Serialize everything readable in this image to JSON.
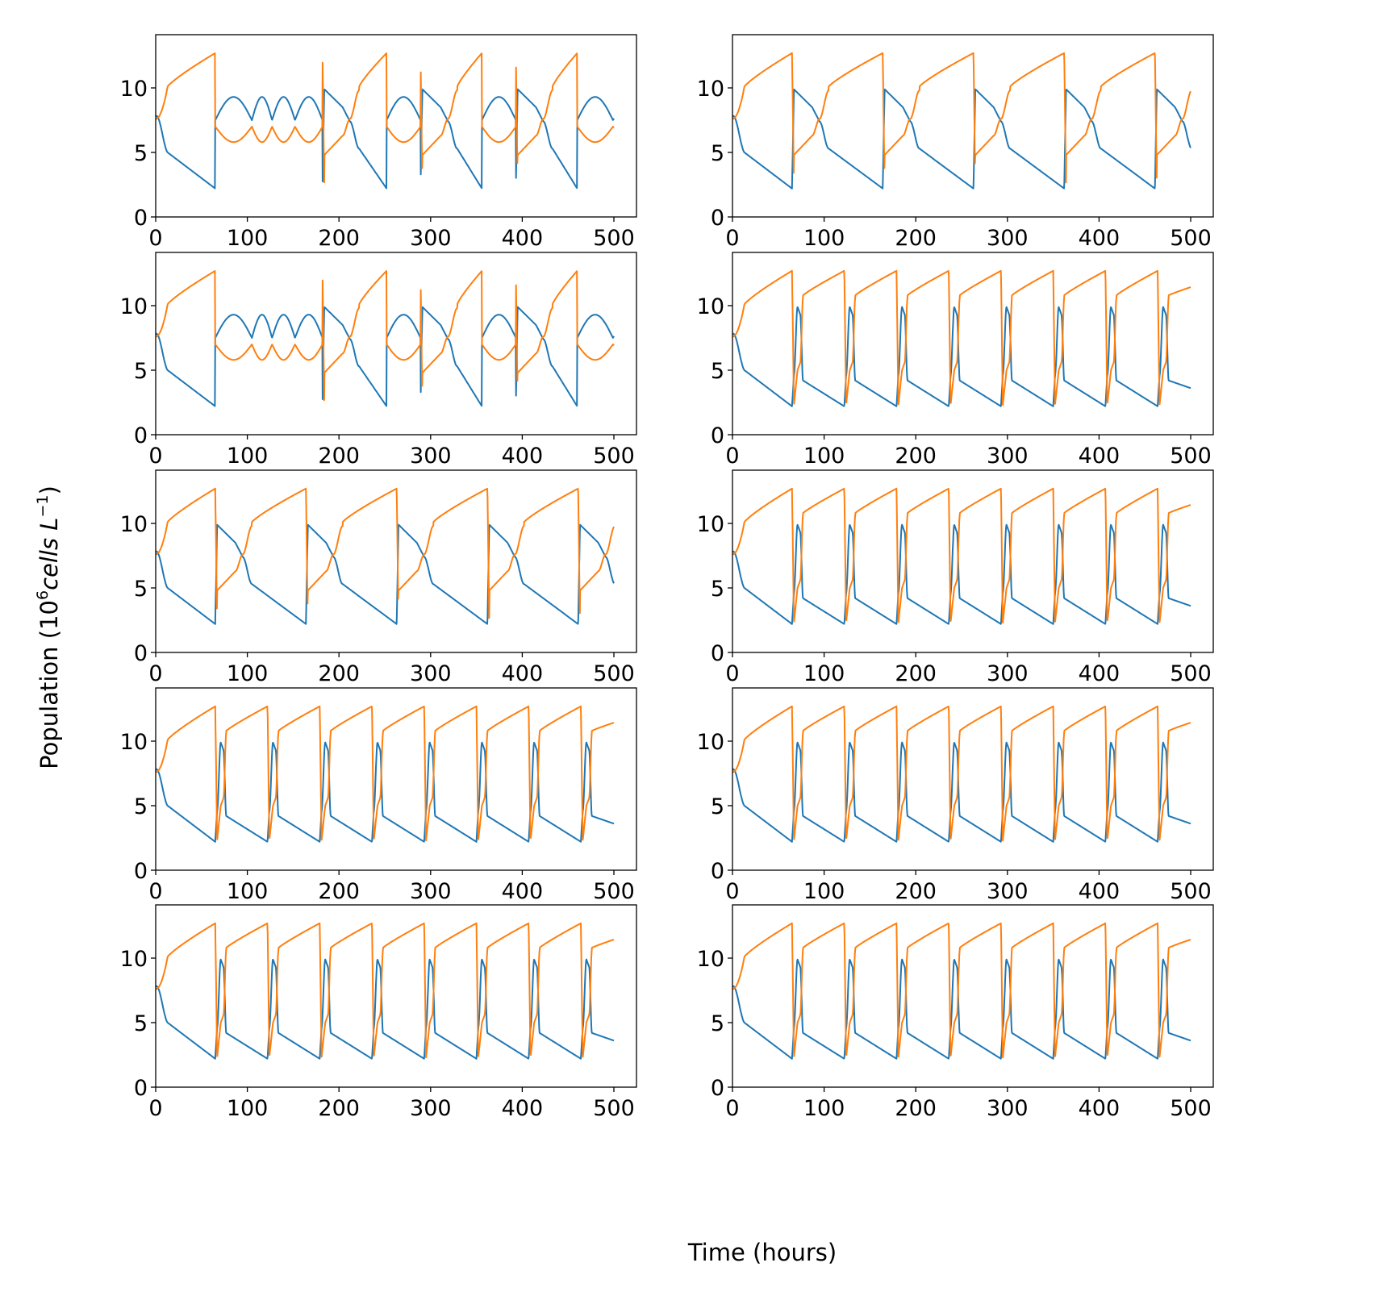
{
  "figure": {
    "xlabel": "Time (hours)",
    "ylabel": "Population (10^6 cells L^-1)",
    "ylabel_parts": {
      "prefix": "Population (10",
      "exp1": "6",
      "italic": "cells L",
      "exp2": "−1",
      "suffix": ")"
    }
  },
  "colors": {
    "series_a": "#1f77b4",
    "series_b": "#ff7f0e"
  },
  "chart_data": [
    {
      "type": "line",
      "panel": "row1-left",
      "pattern": "irregular",
      "xlim": [
        0,
        500
      ],
      "ylim": [
        0,
        13.5
      ],
      "xticks": [
        "0",
        "100",
        "200",
        "300",
        "400",
        "500"
      ],
      "yticks": [
        "0",
        "5",
        "10"
      ],
      "series": [
        {
          "name": "series_a",
          "color": "#1f77b4"
        },
        {
          "name": "series_b",
          "color": "#ff7f0e"
        }
      ],
      "event_times": [
        65,
        105,
        127,
        152,
        182,
        252,
        289,
        356,
        393,
        460,
        499
      ]
    },
    {
      "type": "line",
      "panel": "row1-right",
      "pattern": "long",
      "period": 99,
      "xlim": [
        0,
        500
      ],
      "ylim": [
        0,
        13.5
      ],
      "xticks": [
        "0",
        "100",
        "200",
        "300",
        "400",
        "500"
      ],
      "yticks": [
        "0",
        "5",
        "10"
      ],
      "series": [
        {
          "name": "series_a",
          "color": "#1f77b4"
        },
        {
          "name": "series_b",
          "color": "#ff7f0e"
        }
      ]
    },
    {
      "type": "line",
      "panel": "row2-left",
      "pattern": "irregular",
      "xlim": [
        0,
        500
      ],
      "ylim": [
        0,
        13.5
      ],
      "xticks": [
        "0",
        "100",
        "200",
        "300",
        "400",
        "500"
      ],
      "yticks": [
        "0",
        "5",
        "10"
      ],
      "series": [
        {
          "name": "series_a",
          "color": "#1f77b4"
        },
        {
          "name": "series_b",
          "color": "#ff7f0e"
        }
      ],
      "event_times": [
        65,
        105,
        127,
        152,
        182,
        252,
        289,
        356,
        393,
        460,
        499
      ]
    },
    {
      "type": "line",
      "panel": "row2-right",
      "pattern": "short",
      "period": 57,
      "xlim": [
        0,
        500
      ],
      "ylim": [
        0,
        13.5
      ],
      "xticks": [
        "0",
        "100",
        "200",
        "300",
        "400",
        "500"
      ],
      "yticks": [
        "0",
        "5",
        "10"
      ],
      "series": [
        {
          "name": "series_a",
          "color": "#1f77b4"
        },
        {
          "name": "series_b",
          "color": "#ff7f0e"
        }
      ]
    },
    {
      "type": "line",
      "panel": "row3-left",
      "pattern": "long",
      "period": 99,
      "xlim": [
        0,
        500
      ],
      "ylim": [
        0,
        13.5
      ],
      "xticks": [
        "0",
        "100",
        "200",
        "300",
        "400",
        "500"
      ],
      "yticks": [
        "0",
        "5",
        "10"
      ],
      "series": [
        {
          "name": "series_a",
          "color": "#1f77b4"
        },
        {
          "name": "series_b",
          "color": "#ff7f0e"
        }
      ]
    },
    {
      "type": "line",
      "panel": "row3-right",
      "pattern": "short",
      "period": 57,
      "xlim": [
        0,
        500
      ],
      "ylim": [
        0,
        13.5
      ],
      "xticks": [
        "0",
        "100",
        "200",
        "300",
        "400",
        "500"
      ],
      "yticks": [
        "0",
        "5",
        "10"
      ],
      "series": [
        {
          "name": "series_a",
          "color": "#1f77b4"
        },
        {
          "name": "series_b",
          "color": "#ff7f0e"
        }
      ]
    },
    {
      "type": "line",
      "panel": "row4-left",
      "pattern": "short",
      "period": 57,
      "xlim": [
        0,
        500
      ],
      "ylim": [
        0,
        13.5
      ],
      "xticks": [
        "0",
        "100",
        "200",
        "300",
        "400",
        "500"
      ],
      "yticks": [
        "0",
        "5",
        "10"
      ],
      "series": [
        {
          "name": "series_a",
          "color": "#1f77b4"
        },
        {
          "name": "series_b",
          "color": "#ff7f0e"
        }
      ]
    },
    {
      "type": "line",
      "panel": "row4-right",
      "pattern": "short",
      "period": 57,
      "xlim": [
        0,
        500
      ],
      "ylim": [
        0,
        13.5
      ],
      "xticks": [
        "0",
        "100",
        "200",
        "300",
        "400",
        "500"
      ],
      "yticks": [
        "0",
        "5",
        "10"
      ],
      "series": [
        {
          "name": "series_a",
          "color": "#1f77b4"
        },
        {
          "name": "series_b",
          "color": "#ff7f0e"
        }
      ]
    },
    {
      "type": "line",
      "panel": "row5-left",
      "pattern": "short",
      "period": 57,
      "xlim": [
        0,
        500
      ],
      "ylim": [
        0,
        13.5
      ],
      "xticks": [
        "0",
        "100",
        "200",
        "300",
        "400",
        "500"
      ],
      "yticks": [
        "0",
        "5",
        "10"
      ],
      "series": [
        {
          "name": "series_a",
          "color": "#1f77b4"
        },
        {
          "name": "series_b",
          "color": "#ff7f0e"
        }
      ]
    },
    {
      "type": "line",
      "panel": "row5-right",
      "pattern": "short",
      "period": 57,
      "xlim": [
        0,
        500
      ],
      "ylim": [
        0,
        13.5
      ],
      "xticks": [
        "0",
        "100",
        "200",
        "300",
        "400",
        "500"
      ],
      "yticks": [
        "0",
        "5",
        "10"
      ],
      "series": [
        {
          "name": "series_a",
          "color": "#1f77b4"
        },
        {
          "name": "series_b",
          "color": "#ff7f0e"
        }
      ]
    }
  ]
}
